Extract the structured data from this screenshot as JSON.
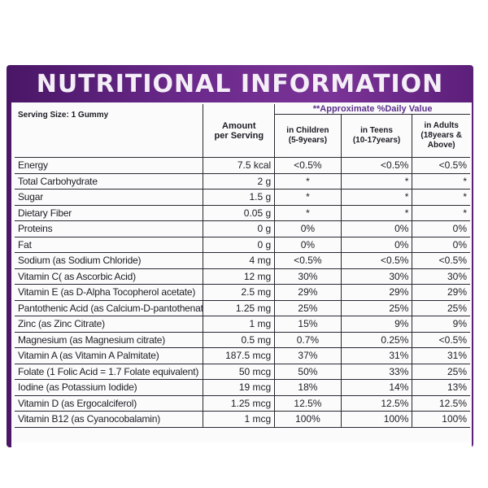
{
  "title": "NUTRITIONAL INFORMATION",
  "header": {
    "approx_daily_value": "**Approximate %Daily Value",
    "serving_size": "Serving Size: 1 Gummy",
    "amount_line1": "Amount",
    "amount_line2": "per Serving",
    "children_line1": "in Children",
    "children_line2": "(5-9years)",
    "teens_line1": "in Teens",
    "teens_line2": "(10-17years)",
    "adults_line1": "in Adults",
    "adults_line2": "(18years &",
    "adults_line3": "Above)"
  },
  "rows": [
    {
      "name": "Energy",
      "amount": "7.5 kcal",
      "children": "<0.5%",
      "teens": "<0.5%",
      "adults": "<0.5%"
    },
    {
      "name": "Total Carbohydrate",
      "amount": "2 g",
      "children": "*",
      "teens": "*",
      "adults": "*"
    },
    {
      "name": "Sugar",
      "amount": "1.5 g",
      "children": "*",
      "teens": "*",
      "adults": "*"
    },
    {
      "name": "Dietary Fiber",
      "amount": "0.05 g",
      "children": "*",
      "teens": "*",
      "adults": "*"
    },
    {
      "name": "Proteins",
      "amount": "0 g",
      "children": "0%",
      "teens": "0%",
      "adults": "0%"
    },
    {
      "name": "Fat",
      "amount": "0 g",
      "children": "0%",
      "teens": "0%",
      "adults": "0%"
    },
    {
      "name": "Sodium (as Sodium Chloride)",
      "amount": "4 mg",
      "children": "<0.5%",
      "teens": "<0.5%",
      "adults": "<0.5%"
    },
    {
      "name": "Vitamin C( as Ascorbic Acid)",
      "amount": "12 mg",
      "children": "30%",
      "teens": "30%",
      "adults": "30%"
    },
    {
      "name": "Vitamin E (as D-Alpha Tocopherol acetate)",
      "amount": "2.5 mg",
      "children": "29%",
      "teens": "29%",
      "adults": "29%"
    },
    {
      "name": "Pantothenic Acid (as Calcium-D-pantothenate)",
      "amount": "1.25 mg",
      "children": "25%",
      "teens": "25%",
      "adults": "25%"
    },
    {
      "name": "Zinc (as Zinc Citrate)",
      "amount": "1 mg",
      "children": "15%",
      "teens": "9%",
      "adults": "9%"
    },
    {
      "name": "Magnesium (as Magnesium citrate)",
      "amount": "0.5 mg",
      "children": "0.7%",
      "teens": "0.25%",
      "adults": "<0.5%"
    },
    {
      "name": "Vitamin A (as Vitamin A Palmitate)",
      "amount": "187.5 mcg",
      "children": "37%",
      "teens": "31%",
      "adults": "31%"
    },
    {
      "name": "Folate (1 Folic Acid = 1.7 Folate equivalent)",
      "amount": "50 mcg",
      "children": "50%",
      "teens": "33%",
      "adults": "25%"
    },
    {
      "name": "Iodine (as Potassium Iodide)",
      "amount": "19 mcg",
      "children": "18%",
      "teens": "14%",
      "adults": "13%"
    },
    {
      "name": "Vitamin D (as Ergocalciferol)",
      "amount": "1.25 mcg",
      "children": "12.5%",
      "teens": "12.5%",
      "adults": "12.5%"
    },
    {
      "name": "Vitamin B12 (as Cyanocobalamin)",
      "amount": "1 mcg",
      "children": "100%",
      "teens": "100%",
      "adults": "100%"
    }
  ]
}
